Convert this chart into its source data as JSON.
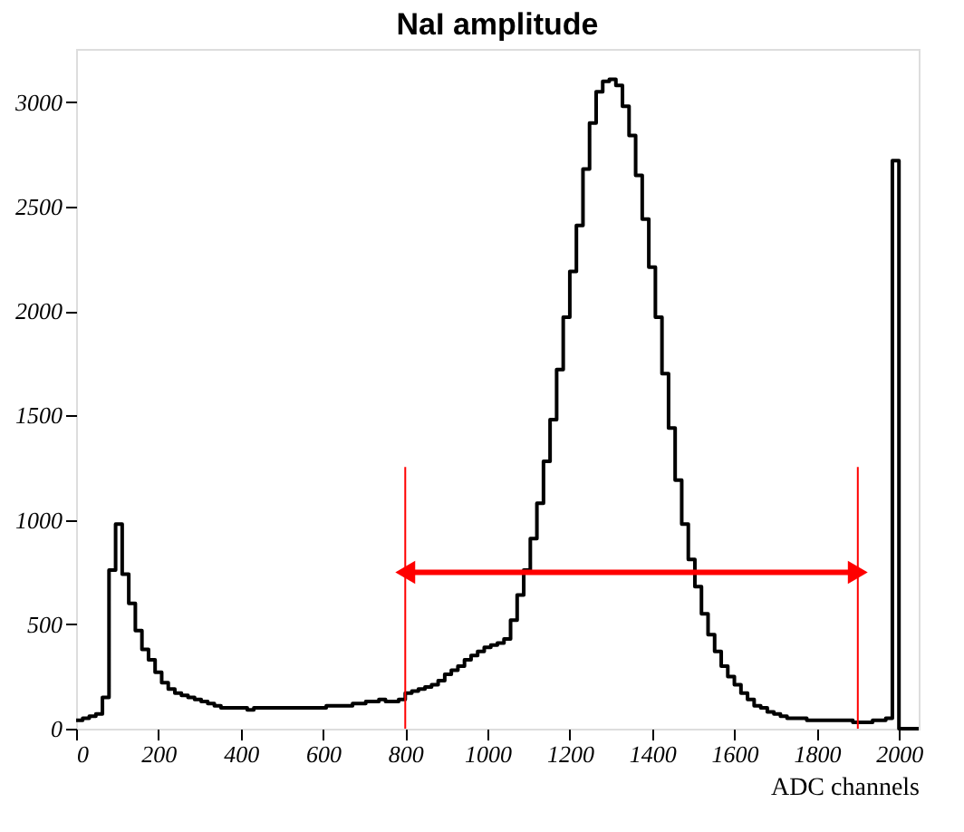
{
  "chart_data": {
    "type": "histogram",
    "title": "NaI amplitude",
    "xlabel": "ADC channels",
    "bins": [
      0,
      16,
      32,
      48,
      64,
      80,
      96,
      112,
      128,
      144,
      160,
      176,
      192,
      208,
      224,
      240,
      256,
      272,
      288,
      304,
      320,
      336,
      352,
      368,
      384,
      400,
      416,
      432,
      448,
      464,
      480,
      496,
      512,
      528,
      544,
      560,
      576,
      592,
      608,
      624,
      640,
      656,
      672,
      688,
      704,
      720,
      736,
      752,
      768,
      784,
      800,
      816,
      832,
      848,
      864,
      880,
      896,
      912,
      928,
      944,
      960,
      976,
      992,
      1008,
      1024,
      1040,
      1056,
      1072,
      1088,
      1104,
      1120,
      1136,
      1152,
      1168,
      1184,
      1200,
      1216,
      1232,
      1248,
      1264,
      1280,
      1296,
      1312,
      1328,
      1344,
      1360,
      1376,
      1392,
      1408,
      1424,
      1440,
      1456,
      1472,
      1488,
      1504,
      1520,
      1536,
      1552,
      1568,
      1584,
      1600,
      1616,
      1632,
      1648,
      1664,
      1680,
      1696,
      1712,
      1728,
      1744,
      1760,
      1776,
      1792,
      1808,
      1824,
      1840,
      1856,
      1872,
      1888,
      1904,
      1920,
      1936,
      1952,
      1968,
      1984,
      2000,
      2016,
      2032,
      2048
    ],
    "values": [
      40,
      50,
      60,
      70,
      150,
      760,
      980,
      740,
      600,
      470,
      380,
      330,
      270,
      220,
      190,
      170,
      160,
      150,
      140,
      130,
      120,
      110,
      100,
      100,
      100,
      100,
      90,
      100,
      100,
      100,
      100,
      100,
      100,
      100,
      100,
      100,
      100,
      100,
      110,
      110,
      110,
      110,
      120,
      120,
      130,
      130,
      140,
      130,
      130,
      140,
      170,
      180,
      190,
      200,
      210,
      230,
      260,
      280,
      300,
      330,
      350,
      370,
      390,
      400,
      410,
      430,
      520,
      640,
      760,
      910,
      1080,
      1280,
      1480,
      1720,
      1970,
      2190,
      2410,
      2680,
      2900,
      3050,
      3100,
      3110,
      3080,
      2980,
      2840,
      2650,
      2440,
      2210,
      1970,
      1700,
      1440,
      1190,
      980,
      810,
      680,
      550,
      450,
      370,
      300,
      250,
      210,
      170,
      140,
      110,
      100,
      80,
      70,
      60,
      50,
      50,
      50,
      40,
      40,
      40,
      40,
      40,
      40,
      40,
      30,
      30,
      30,
      40,
      40,
      50,
      2720,
      0,
      0,
      0
    ],
    "color": "#000000",
    "xlim": [
      0,
      2048
    ],
    "ylim": [
      0,
      3255
    ],
    "xticks": [
      0,
      200,
      400,
      600,
      800,
      1000,
      1200,
      1400,
      1600,
      1800,
      2000
    ],
    "yticks": [
      0,
      500,
      1000,
      1500,
      2000,
      2500,
      3000
    ],
    "grid": false,
    "ref_lines": [
      {
        "axis": "x",
        "value": 800,
        "color": "#ff0000"
      },
      {
        "axis": "x",
        "value": 1900,
        "color": "#ff0000"
      }
    ]
  }
}
